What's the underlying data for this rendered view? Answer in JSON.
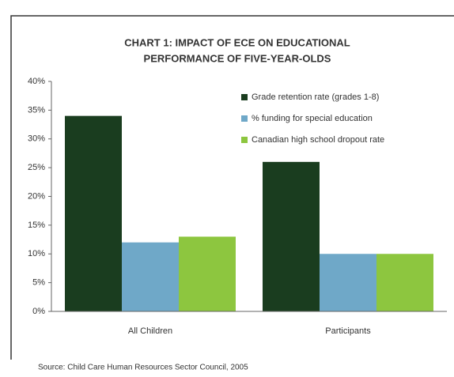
{
  "chart_data": {
    "type": "bar",
    "title": "CHART 1: IMPACT OF ECE ON EDUCATIONAL",
    "subtitle": "PERFORMANCE OF FIVE-YEAR-OLDS",
    "categories": [
      "All Children",
      "Participants"
    ],
    "series": [
      {
        "name": "Grade retention rate (grades 1-8)",
        "color": "#1a3d1f",
        "values": [
          34,
          26
        ]
      },
      {
        "name": "% funding for special education",
        "color": "#6fa8c8",
        "values": [
          12,
          10
        ]
      },
      {
        "name": "Canadian high school dropout rate",
        "color": "#8dc63f",
        "values": [
          13,
          10
        ]
      }
    ],
    "ylim": [
      0,
      40
    ],
    "yticks": [
      {
        "value": 0,
        "label": "0%"
      },
      {
        "value": 5,
        "label": "5%"
      },
      {
        "value": 10,
        "label": "10%"
      },
      {
        "value": 15,
        "label": "15%"
      },
      {
        "value": 20,
        "label": "20%"
      },
      {
        "value": 25,
        "label": "25%"
      },
      {
        "value": 30,
        "label": "30%"
      },
      {
        "value": 35,
        "label": "35%"
      },
      {
        "value": 40,
        "label": "40%"
      }
    ],
    "legend": "upper right",
    "source": "Source: Child Care Human Resources Sector Council, 2005"
  }
}
